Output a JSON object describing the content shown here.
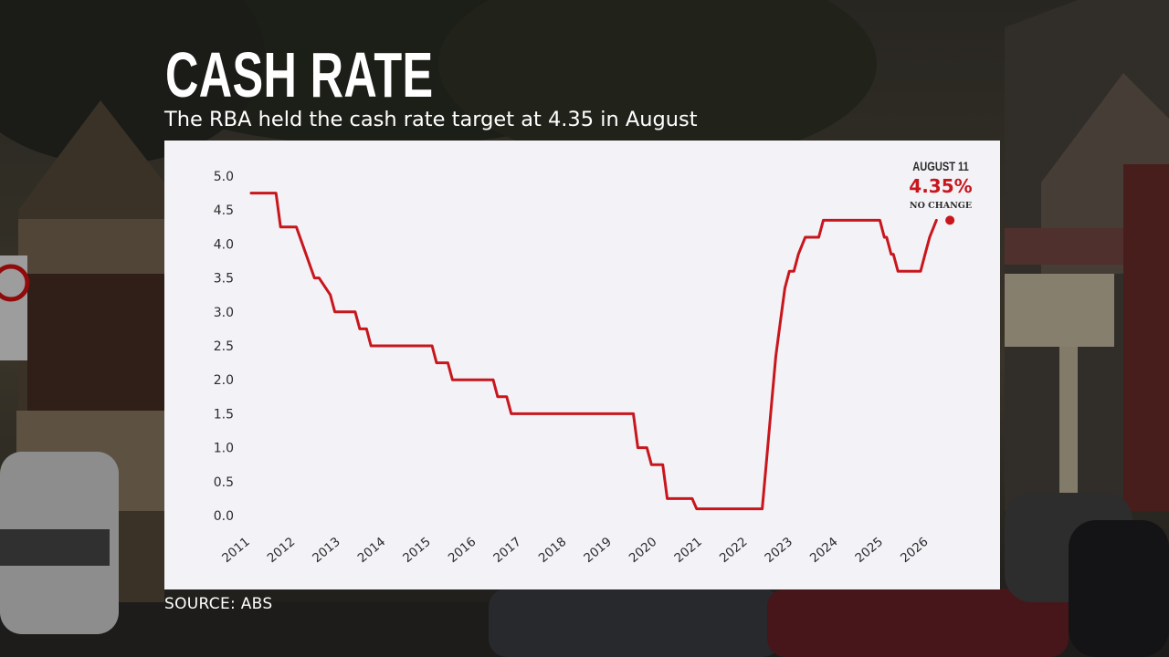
{
  "header": {
    "title": "CASH RATE",
    "subtitle": "The RBA held the cash rate target at 4.35 in August"
  },
  "footer": {
    "source": "SOURCE: ABS"
  },
  "callout": {
    "date": "AUGUST 11",
    "value": "4.35%",
    "status": "NO CHANGE"
  },
  "colors": {
    "line": "#c8161d",
    "card": "#f3f2f6",
    "text": "#2b2b2b"
  },
  "chart_data": {
    "type": "line",
    "title": "CASH RATE",
    "subtitle": "The RBA held the cash rate target at 4.35 in August",
    "xlabel": "",
    "ylabel": "",
    "ylim": [
      0,
      5
    ],
    "xlim": [
      2011,
      2026.75
    ],
    "grid": false,
    "yticks": [
      "0.0",
      "0.5",
      "1.0",
      "1.5",
      "2.0",
      "2.5",
      "3.0",
      "3.5",
      "4.0",
      "4.5",
      "5.0"
    ],
    "xticks": [
      "2011",
      "2012",
      "2013",
      "2014",
      "2015",
      "2016",
      "2017",
      "2018",
      "2019",
      "2020",
      "2021",
      "2022",
      "2023",
      "2024",
      "2025",
      "2026"
    ],
    "series": [
      {
        "x": [
          2011.0,
          2011.55,
          2011.65,
          2011.9,
          2012.0,
          2012.4,
          2012.5,
          2012.75,
          2012.85,
          2013.3,
          2013.4,
          2013.55,
          2013.65,
          2014.0,
          2014.5,
          2015.0,
          2015.1,
          2015.35,
          2015.45,
          2016.0,
          2016.35,
          2016.45,
          2016.65,
          2016.75,
          2017.0,
          2018.0,
          2019.0,
          2019.45,
          2019.55,
          2019.75,
          2019.85,
          2020.1,
          2020.2,
          2020.75,
          2020.85,
          2021.5,
          2022.0,
          2022.3,
          2022.4,
          2022.5,
          2022.6,
          2022.7,
          2022.8,
          2022.9,
          2023.0,
          2023.1,
          2023.25,
          2023.4,
          2023.55,
          2023.65,
          2023.95,
          2024.05,
          2024.5,
          2024.9,
          2025.0,
          2025.05,
          2025.15,
          2025.2,
          2025.3,
          2025.7,
          2025.8,
          2025.9,
          2026.0,
          2026.15
        ],
        "y": [
          4.75,
          4.75,
          4.25,
          4.25,
          4.25,
          3.5,
          3.5,
          3.25,
          3.0,
          3.0,
          2.75,
          2.75,
          2.5,
          2.5,
          2.5,
          2.5,
          2.25,
          2.25,
          2.0,
          2.0,
          2.0,
          1.75,
          1.75,
          1.5,
          1.5,
          1.5,
          1.5,
          1.5,
          1.0,
          1.0,
          0.75,
          0.75,
          0.25,
          0.25,
          0.1,
          0.1,
          0.1,
          0.1,
          0.85,
          1.6,
          2.35,
          2.85,
          3.35,
          3.6,
          3.6,
          3.85,
          4.1,
          4.1,
          4.1,
          4.35,
          4.35,
          4.35,
          4.35,
          4.35,
          4.1,
          4.1,
          3.85,
          3.85,
          3.6,
          3.6,
          3.6,
          3.85,
          4.1,
          4.35
        ]
      }
    ],
    "endpoint": {
      "x": 2026.45,
      "y": 4.35
    }
  }
}
